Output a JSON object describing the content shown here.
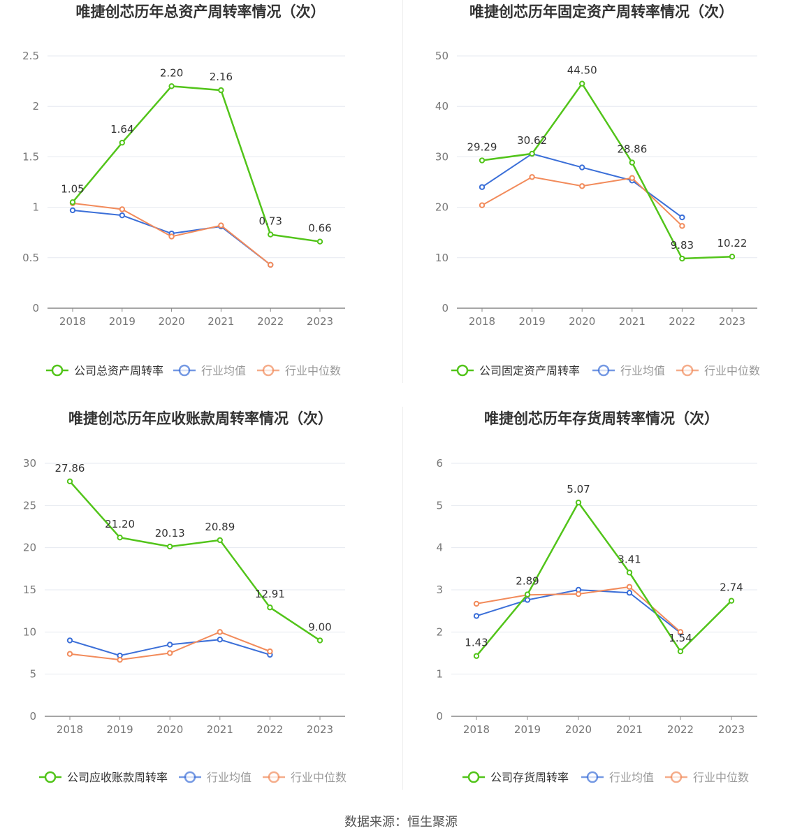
{
  "colors": {
    "company": "#52c41a",
    "industry_avg": "#3b6fd8",
    "industry_median": "#f28b5b",
    "grid": "#e6e9f0",
    "axis": "#888888",
    "tick_text": "#777777",
    "title": "#333333",
    "label": "#333333"
  },
  "source": "数据来源：恒生聚源",
  "chart_data": [
    {
      "type": "line",
      "title": "唯捷创芯历年总资产周转率情况（次）",
      "categories": [
        "2018",
        "2019",
        "2020",
        "2021",
        "2022",
        "2023"
      ],
      "ylim": [
        0,
        2.5
      ],
      "yticks": [
        "0",
        "0.5",
        "1",
        "1.5",
        "2",
        "2.5"
      ],
      "ytick_values": [
        0,
        0.5,
        1,
        1.5,
        2,
        2.5
      ],
      "series": [
        {
          "name": "公司总资产周转率",
          "role": "company",
          "values": [
            1.05,
            1.64,
            2.2,
            2.16,
            0.73,
            0.66
          ],
          "labels": [
            "1.05",
            "1.64",
            "2.20",
            "2.16",
            "0.73",
            "0.66"
          ]
        },
        {
          "name": "行业均值",
          "role": "industry_avg",
          "values": [
            0.97,
            0.92,
            0.74,
            0.81,
            0.43,
            null
          ]
        },
        {
          "name": "行业中位数",
          "role": "industry_median",
          "values": [
            1.04,
            0.98,
            0.71,
            0.82,
            0.43,
            null
          ]
        }
      ]
    },
    {
      "type": "line",
      "title": "唯捷创芯历年固定资产周转率情况（次）",
      "categories": [
        "2018",
        "2019",
        "2020",
        "2021",
        "2022",
        "2023"
      ],
      "ylim": [
        0,
        50
      ],
      "yticks": [
        "0",
        "10",
        "20",
        "30",
        "40",
        "50"
      ],
      "ytick_values": [
        0,
        10,
        20,
        30,
        40,
        50
      ],
      "series": [
        {
          "name": "公司固定资产周转率",
          "role": "company",
          "values": [
            29.29,
            30.62,
            44.5,
            28.86,
            9.83,
            10.22
          ],
          "labels": [
            "29.29",
            "30.62",
            "44.50",
            "28.86",
            "9.83",
            "10.22"
          ]
        },
        {
          "name": "行业均值",
          "role": "industry_avg",
          "values": [
            24.0,
            30.6,
            27.9,
            25.3,
            18.0,
            null
          ]
        },
        {
          "name": "行业中位数",
          "role": "industry_median",
          "values": [
            20.4,
            26.0,
            24.2,
            25.8,
            16.3,
            null
          ]
        }
      ]
    },
    {
      "type": "line",
      "title": "唯捷创芯历年应收账款周转率情况（次）",
      "categories": [
        "2018",
        "2019",
        "2020",
        "2021",
        "2022",
        "2023"
      ],
      "ylim": [
        0,
        30
      ],
      "yticks": [
        "0",
        "5",
        "10",
        "15",
        "20",
        "25",
        "30"
      ],
      "ytick_values": [
        0,
        5,
        10,
        15,
        20,
        25,
        30
      ],
      "series": [
        {
          "name": "公司应收账款周转率",
          "role": "company",
          "values": [
            27.86,
            21.2,
            20.13,
            20.89,
            12.91,
            9.0
          ],
          "labels": [
            "27.86",
            "21.20",
            "20.13",
            "20.89",
            "12.91",
            "9.00"
          ]
        },
        {
          "name": "行业均值",
          "role": "industry_avg",
          "values": [
            9.0,
            7.2,
            8.5,
            9.1,
            7.3,
            null
          ]
        },
        {
          "name": "行业中位数",
          "role": "industry_median",
          "values": [
            7.4,
            6.7,
            7.5,
            10.0,
            7.7,
            null
          ]
        }
      ]
    },
    {
      "type": "line",
      "title": "唯捷创芯历年存货周转率情况（次）",
      "categories": [
        "2018",
        "2019",
        "2020",
        "2021",
        "2022",
        "2023"
      ],
      "ylim": [
        0,
        6
      ],
      "yticks": [
        "0",
        "1",
        "2",
        "3",
        "4",
        "5",
        "6"
      ],
      "ytick_values": [
        0,
        1,
        2,
        3,
        4,
        5,
        6
      ],
      "series": [
        {
          "name": "公司存货周转率",
          "role": "company",
          "values": [
            1.43,
            2.89,
            5.07,
            3.41,
            1.54,
            2.74
          ],
          "labels": [
            "1.43",
            "2.89",
            "5.07",
            "3.41",
            "1.54",
            "2.74"
          ]
        },
        {
          "name": "行业均值",
          "role": "industry_avg",
          "values": [
            2.38,
            2.76,
            3.0,
            2.93,
            1.98,
            null
          ]
        },
        {
          "name": "行业中位数",
          "role": "industry_median",
          "values": [
            2.67,
            2.88,
            2.9,
            3.07,
            2.0,
            null
          ]
        }
      ]
    }
  ]
}
